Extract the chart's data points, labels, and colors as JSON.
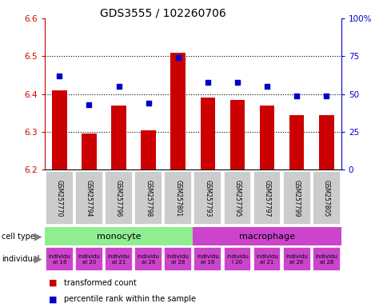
{
  "title": "GDS3555 / 102260706",
  "samples": [
    "GSM257770",
    "GSM257794",
    "GSM257796",
    "GSM257798",
    "GSM257801",
    "GSM257793",
    "GSM257795",
    "GSM257797",
    "GSM257799",
    "GSM257805"
  ],
  "bar_values": [
    6.41,
    6.295,
    6.37,
    6.305,
    6.51,
    6.39,
    6.385,
    6.37,
    6.345,
    6.345
  ],
  "percentile_values": [
    62,
    43,
    55,
    44,
    74,
    58,
    58,
    55,
    49,
    49
  ],
  "ylim": [
    6.2,
    6.6
  ],
  "y2lim": [
    0,
    100
  ],
  "yticks": [
    6.2,
    6.3,
    6.4,
    6.5,
    6.6
  ],
  "y2ticks": [
    0,
    25,
    50,
    75,
    100
  ],
  "y2ticklabels": [
    "0",
    "25",
    "50",
    "75",
    "100%"
  ],
  "bar_color": "#cc0000",
  "scatter_color": "#0000cc",
  "bar_base": 6.2,
  "monocyte_color": "#90ee90",
  "macrophage_color": "#cc44cc",
  "individual_color": "#cc44cc",
  "individual_labels_mono": [
    "individu\nal 16",
    "individu\nal 20",
    "individu\nal 21",
    "individu\nal 26",
    "individu\nal 28"
  ],
  "individual_labels_macro": [
    "individu\nal 16",
    "individu\nl 20",
    "individu\nal 21",
    "individu\nal 26",
    "individu\nal 28"
  ],
  "legend_red": "transformed count",
  "legend_blue": "percentile rank within the sample",
  "bar_color_left": "#cc0000",
  "y2label_color": "#0000cc",
  "sample_bg_color": "#cccccc",
  "bar_width": 0.5,
  "grid_yticks": [
    6.3,
    6.4,
    6.5
  ]
}
